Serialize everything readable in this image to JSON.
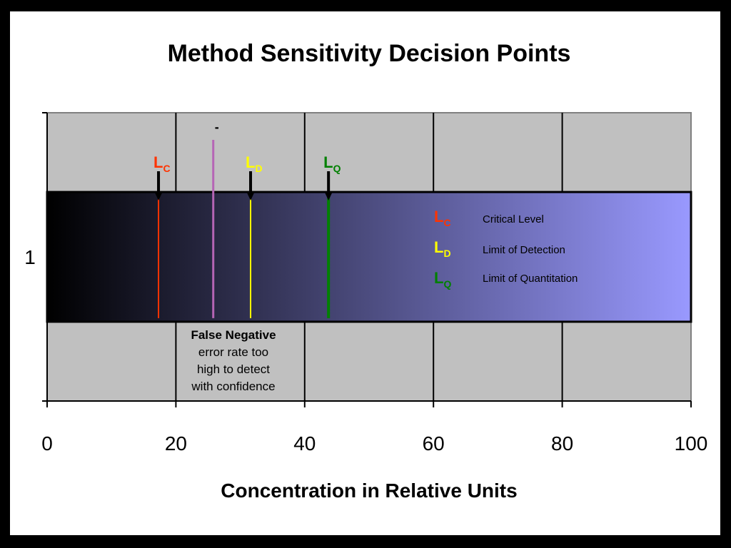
{
  "chart_data": {
    "type": "bar",
    "title": "Method Sensitivity Decision Points",
    "xlabel": "Concentration in Relative Units",
    "ylabel": "",
    "xlim": [
      0,
      100
    ],
    "x_ticks": [
      "0",
      "20",
      "40",
      "60",
      "80",
      "100"
    ],
    "y_category": "1",
    "grid": true,
    "band": {
      "y_range": [
        0.55,
        1.45
      ],
      "color_start": "#000000",
      "color_end": "#9999ff"
    },
    "markers": [
      {
        "main": "L",
        "sub": "C",
        "x": 17.3,
        "color": "#ff3300"
      },
      {
        "main": "L",
        "sub": "D",
        "x": 31.6,
        "color": "#ffff00"
      },
      {
        "main": "L",
        "sub": "Q",
        "x": 43.7,
        "color": "#008000"
      }
    ],
    "extra_line": {
      "label": "-",
      "x": 25.8,
      "color": "#b565b5"
    },
    "legend": [
      {
        "main": "L",
        "sub": "C",
        "desc": "Critical Level",
        "color": "#ff3300"
      },
      {
        "main": "L",
        "sub": "D",
        "desc": "Limit of Detection",
        "color": "#ffff00"
      },
      {
        "main": "L",
        "sub": "Q",
        "desc": "Limit of Quantitation",
        "color": "#008000"
      }
    ],
    "annotation": {
      "title": "False Negative",
      "lines": [
        "error rate too",
        "high to detect",
        "with confidence"
      ]
    }
  }
}
